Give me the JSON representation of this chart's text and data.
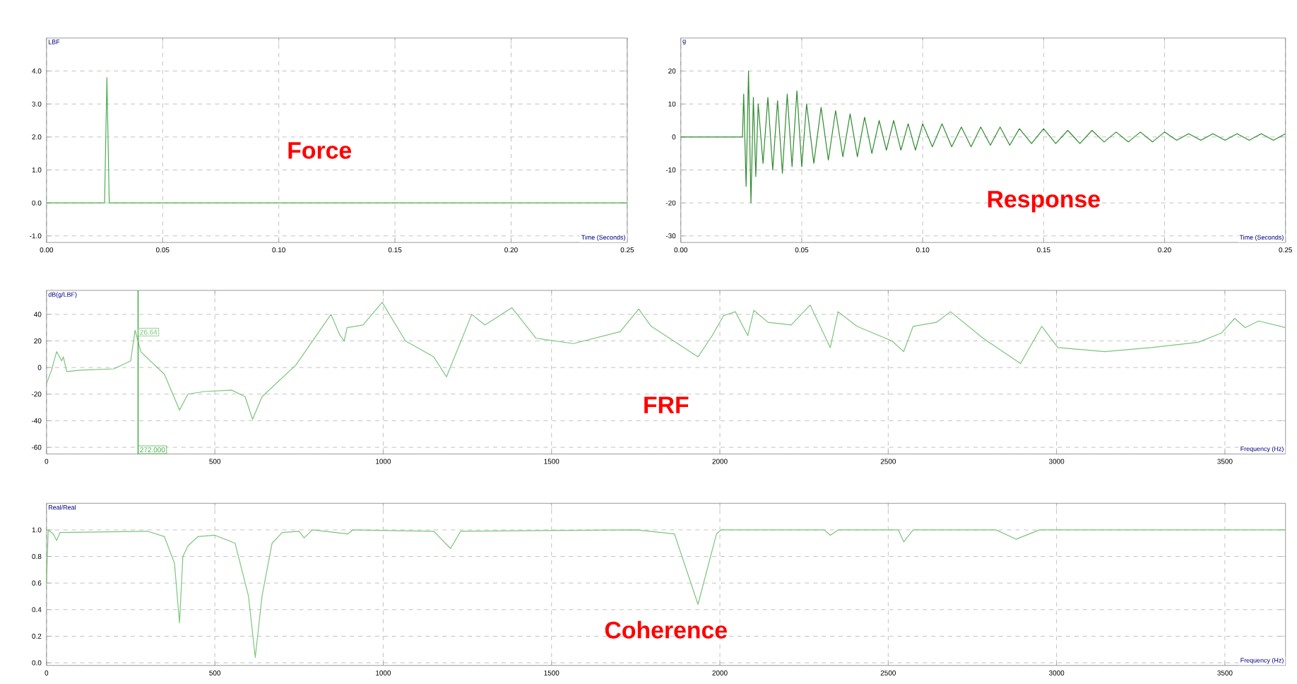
{
  "chart_data": [
    {
      "type": "line",
      "title": "Force",
      "xlabel": "Time (Seconds)",
      "ylabel": "LBF",
      "color": "#4caf50",
      "grid": true,
      "xlim": [
        0,
        0.25
      ],
      "ylim": [
        -1.2,
        5
      ],
      "xticks": [
        {
          "value": 0,
          "label": "0.00"
        },
        {
          "value": 0.05,
          "label": "0.05"
        },
        {
          "value": 0.1,
          "label": "0.10"
        },
        {
          "value": 0.15,
          "label": "0.15"
        },
        {
          "value": 0.2,
          "label": "0.20"
        },
        {
          "value": 0.25,
          "label": "0.25"
        }
      ],
      "yticks": [
        {
          "value": -1,
          "label": "-1.0"
        },
        {
          "value": 0,
          "label": "0.0"
        },
        {
          "value": 1,
          "label": "1.0"
        },
        {
          "value": 2,
          "label": "2.0"
        },
        {
          "value": 3,
          "label": "3.0"
        },
        {
          "value": 4,
          "label": "4.0"
        }
      ],
      "x": [
        0,
        0.025,
        0.026,
        0.027,
        0.25
      ],
      "values": [
        0,
        0,
        3.8,
        0,
        0
      ]
    },
    {
      "type": "line",
      "title": "Response",
      "xlabel": "Time (Seconds)",
      "ylabel": "g",
      "color": "#2e8b2e",
      "grid": true,
      "xlim": [
        0,
        0.25
      ],
      "ylim": [
        -32,
        30
      ],
      "xticks": [
        {
          "value": 0,
          "label": "0.00"
        },
        {
          "value": 0.05,
          "label": "0.05"
        },
        {
          "value": 0.1,
          "label": "0.10"
        },
        {
          "value": 0.15,
          "label": "0.15"
        },
        {
          "value": 0.2,
          "label": "0.20"
        },
        {
          "value": 0.25,
          "label": "0.25"
        }
      ],
      "yticks": [
        -30,
        -20,
        -10,
        0,
        10,
        20
      ],
      "x": [
        0,
        0.0255,
        0.026,
        0.027,
        0.028,
        0.029,
        0.03,
        0.031,
        0.032,
        0.034,
        0.036,
        0.038,
        0.04,
        0.042,
        0.044,
        0.046,
        0.048,
        0.05,
        0.052,
        0.055,
        0.058,
        0.061,
        0.064,
        0.067,
        0.07,
        0.073,
        0.076,
        0.079,
        0.082,
        0.085,
        0.088,
        0.091,
        0.094,
        0.097,
        0.1,
        0.104,
        0.108,
        0.112,
        0.116,
        0.12,
        0.124,
        0.128,
        0.132,
        0.136,
        0.14,
        0.145,
        0.15,
        0.155,
        0.16,
        0.165,
        0.17,
        0.175,
        0.18,
        0.185,
        0.19,
        0.195,
        0.2,
        0.205,
        0.21,
        0.215,
        0.22,
        0.225,
        0.23,
        0.235,
        0.24,
        0.245,
        0.25
      ],
      "values": [
        0,
        0,
        13,
        -15,
        20,
        -20,
        12,
        -12,
        10,
        -8,
        12,
        -10,
        11,
        -11,
        13,
        -9,
        14,
        -9,
        10,
        -8,
        9,
        -7,
        8,
        -6,
        7,
        -6,
        6,
        -5,
        5,
        -4,
        5,
        -4,
        4,
        -4,
        4,
        -3,
        4,
        -3,
        3,
        -3,
        3,
        -2.5,
        3,
        -2.5,
        2.5,
        -2,
        2.5,
        -2,
        2,
        -2,
        2,
        -1.5,
        1.5,
        -1.5,
        1.5,
        -1.5,
        1.5,
        -1,
        1,
        -1,
        1,
        -1,
        1,
        -1,
        1,
        -1,
        1
      ]
    },
    {
      "type": "line",
      "title": "FRF",
      "xlabel": "Frequency (Hz)",
      "ylabel": "dB(g/LBF)",
      "color": "#7cc47c",
      "grid": true,
      "xlim": [
        0,
        3680
      ],
      "ylim": [
        -65,
        58
      ],
      "xticks": [
        0,
        500,
        1000,
        1500,
        2000,
        2500,
        3000,
        3500
      ],
      "yticks": [
        -60,
        -40,
        -20,
        0,
        20,
        40
      ],
      "ref_lines": [
        {
          "axis": "x",
          "value": 272,
          "label": "272.000",
          "color": "#4caf50"
        }
      ],
      "annotations": [
        {
          "text": "26.64",
          "x": 272,
          "y": 26.64
        }
      ],
      "x": [
        0,
        15,
        30,
        45,
        50,
        60,
        100,
        200,
        250,
        263,
        280,
        300,
        350,
        395,
        420,
        470,
        550,
        590,
        612,
        640,
        741,
        845,
        870,
        884,
        893,
        940,
        997,
        1066,
        1150,
        1188,
        1263,
        1302,
        1382,
        1454,
        1565,
        1704,
        1759,
        1796,
        1935,
        1977,
        2011,
        2046,
        2083,
        2101,
        2143,
        2212,
        2268,
        2328,
        2351,
        2407,
        2511,
        2546,
        2574,
        2643,
        2685,
        2782,
        2893,
        2956,
        3004,
        3143,
        3282,
        3421,
        3490,
        3529,
        3560,
        3600,
        3680
      ],
      "values": [
        -12,
        -2,
        12,
        5,
        8,
        -3,
        -2,
        -1,
        5,
        28,
        12,
        7,
        -5,
        -32,
        -20,
        -18,
        -17,
        -22,
        -39,
        -22,
        2,
        40,
        25,
        20,
        30,
        32,
        49,
        20,
        8,
        -7,
        40,
        32,
        45,
        22,
        18,
        27,
        44,
        31,
        8,
        24,
        39,
        42,
        24,
        43,
        34,
        32,
        47,
        15,
        42,
        31,
        20,
        12,
        31,
        34,
        42,
        22,
        3,
        31,
        15,
        12,
        15,
        19,
        26,
        37,
        30,
        35,
        30
      ]
    },
    {
      "type": "line",
      "title": "Coherence",
      "xlabel": "Frequency (Hz)",
      "ylabel": "Real/Real",
      "color": "#7cc47c",
      "grid": true,
      "xlim": [
        0,
        3680
      ],
      "ylim": [
        -0.02,
        1.2
      ],
      "xticks": [
        0,
        500,
        1000,
        1500,
        2000,
        2500,
        3000,
        3500
      ],
      "yticks": [
        {
          "value": 0,
          "label": "0.0"
        },
        {
          "value": 0.2,
          "label": "0.2"
        },
        {
          "value": 0.4,
          "label": "0.4"
        },
        {
          "value": 0.6,
          "label": "0.6"
        },
        {
          "value": 0.8,
          "label": "0.8"
        },
        {
          "value": 1,
          "label": "1.0"
        }
      ],
      "x": [
        0,
        5,
        20,
        30,
        40,
        300,
        350,
        380,
        395,
        405,
        420,
        450,
        500,
        560,
        600,
        620,
        640,
        670,
        700,
        750,
        765,
        790,
        895,
        910,
        1150,
        1200,
        1230,
        1754,
        1865,
        1935,
        1990,
        2004,
        2310,
        2328,
        2351,
        2530,
        2546,
        2574,
        2820,
        2880,
        2949,
        3680
      ],
      "values": [
        0.6,
        1.0,
        0.97,
        0.92,
        0.98,
        0.99,
        0.95,
        0.75,
        0.3,
        0.8,
        0.88,
        0.95,
        0.96,
        0.9,
        0.5,
        0.04,
        0.5,
        0.9,
        0.98,
        0.99,
        0.94,
        1.0,
        0.97,
        1.0,
        0.99,
        0.86,
        0.99,
        1.0,
        0.97,
        0.44,
        0.97,
        1.0,
        1.0,
        0.96,
        1.0,
        1.0,
        0.91,
        1.0,
        1.0,
        0.93,
        1.0,
        1.0
      ]
    }
  ]
}
